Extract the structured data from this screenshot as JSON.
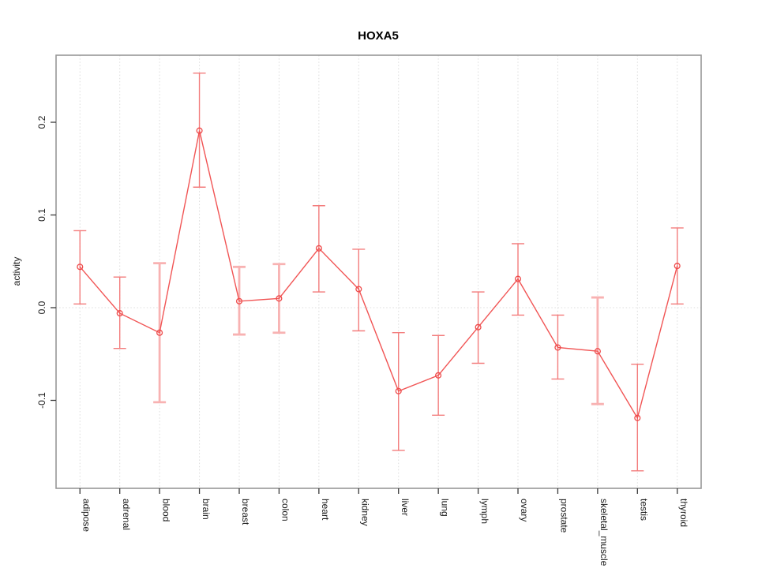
{
  "chart_data": {
    "type": "line",
    "title": "HOXA5",
    "ylabel": "activity",
    "xlabel": "",
    "legend": "none",
    "grid": {
      "vertical": "dotted line at every category",
      "horizontal": "dotted line at y=0 only"
    },
    "categories": [
      "adipose",
      "adrenal",
      "blood",
      "brain",
      "breast",
      "colon",
      "heart",
      "kidney",
      "liver",
      "lung",
      "lymph",
      "ovary",
      "prostate",
      "skeletal_muscle",
      "testis",
      "thyroid"
    ],
    "series": [
      {
        "name": "activity",
        "values": [
          0.044,
          -0.006,
          -0.027,
          0.191,
          0.007,
          0.01,
          0.064,
          0.02,
          -0.09,
          -0.073,
          -0.021,
          0.031,
          -0.043,
          -0.047,
          -0.119,
          0.045
        ],
        "error_low": [
          0.004,
          -0.044,
          -0.102,
          0.13,
          -0.029,
          -0.027,
          0.017,
          -0.025,
          -0.154,
          -0.116,
          -0.06,
          -0.008,
          -0.077,
          -0.104,
          -0.176,
          0.004
        ],
        "error_high": [
          0.083,
          0.033,
          0.048,
          0.253,
          0.044,
          0.047,
          0.11,
          0.063,
          -0.027,
          -0.03,
          0.017,
          0.069,
          -0.008,
          0.011,
          -0.061,
          0.086
        ],
        "bar_style": [
          "normal",
          "normal",
          "light",
          "normal",
          "light",
          "light",
          "normal",
          "normal",
          "normal",
          "normal",
          "normal",
          "normal",
          "normal",
          "light",
          "normal",
          "normal"
        ]
      }
    ],
    "yticks": [
      -0.1,
      0.0,
      0.1,
      0.2
    ],
    "ytick_labels": [
      "-0.1",
      "0.0",
      "0.1",
      "0.2"
    ],
    "ylim": [
      -0.195,
      0.272
    ],
    "colors": {
      "series_line": "#f15555",
      "error_bar": "#f37c7c",
      "error_bar_light": "#f8b2b2",
      "marker": "#ee4b4b",
      "plot_border": "#979797",
      "gridline": "#dcdcdc",
      "text": "#1a1a1a"
    }
  }
}
